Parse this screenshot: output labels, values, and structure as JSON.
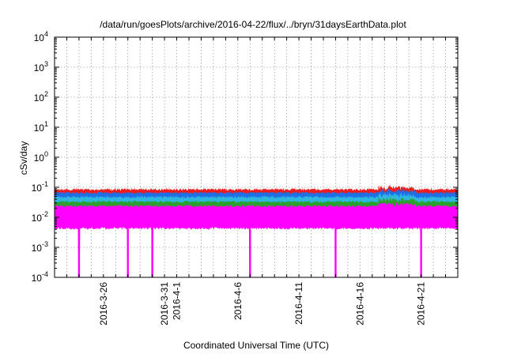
{
  "chart_data": {
    "type": "area",
    "title": "/data/run/goesPlots/archive/2016-04-22/flux/../bryn/31daysEarthData.plot",
    "xlabel": "Coordinated Universal Time (UTC)",
    "ylabel": "cSv/day",
    "yscale": "log",
    "ylim": [
      0.0001,
      10000
    ],
    "xlim": [
      "2016-03-22",
      "2016-04-24"
    ],
    "grid": true,
    "x_ticks": [
      "2016-3-26",
      "2016-3-31",
      "2016-4-1",
      "2016-4-6",
      "2016-4-11",
      "2016-4-16",
      "2016-4-21"
    ],
    "y_ticks": [
      {
        "value": 0.0001,
        "mant": "10",
        "exp": "-4"
      },
      {
        "value": 0.001,
        "mant": "10",
        "exp": "-3"
      },
      {
        "value": 0.01,
        "mant": "10",
        "exp": "-2"
      },
      {
        "value": 0.1,
        "mant": "10",
        "exp": "-1"
      },
      {
        "value": 1,
        "mant": "10",
        "exp": "0"
      },
      {
        "value": 10,
        "mant": "10",
        "exp": "1"
      },
      {
        "value": 100,
        "mant": "10",
        "exp": "2"
      },
      {
        "value": 1000,
        "mant": "10",
        "exp": "3"
      },
      {
        "value": 10000,
        "mant": "10",
        "exp": "4"
      }
    ],
    "series": [
      {
        "color": "#ee1c1c",
        "typical_range": [
          0.045,
          0.09
        ]
      },
      {
        "color": "#1f6fe6",
        "typical_range": [
          0.03,
          0.07
        ]
      },
      {
        "color": "#2fb7e0",
        "typical_range": [
          0.02,
          0.05
        ]
      },
      {
        "color": "#2ca02c",
        "typical_range": [
          0.015,
          0.035
        ]
      },
      {
        "color": "#ff00ff",
        "typical_range": [
          0.004,
          0.025
        ]
      }
    ],
    "dropouts": [
      "2016-03-24",
      "2016-03-28",
      "2016-03-30",
      "2016-04-07",
      "2016-04-14",
      "2016-04-21"
    ],
    "dropout_value": 0.0001
  }
}
